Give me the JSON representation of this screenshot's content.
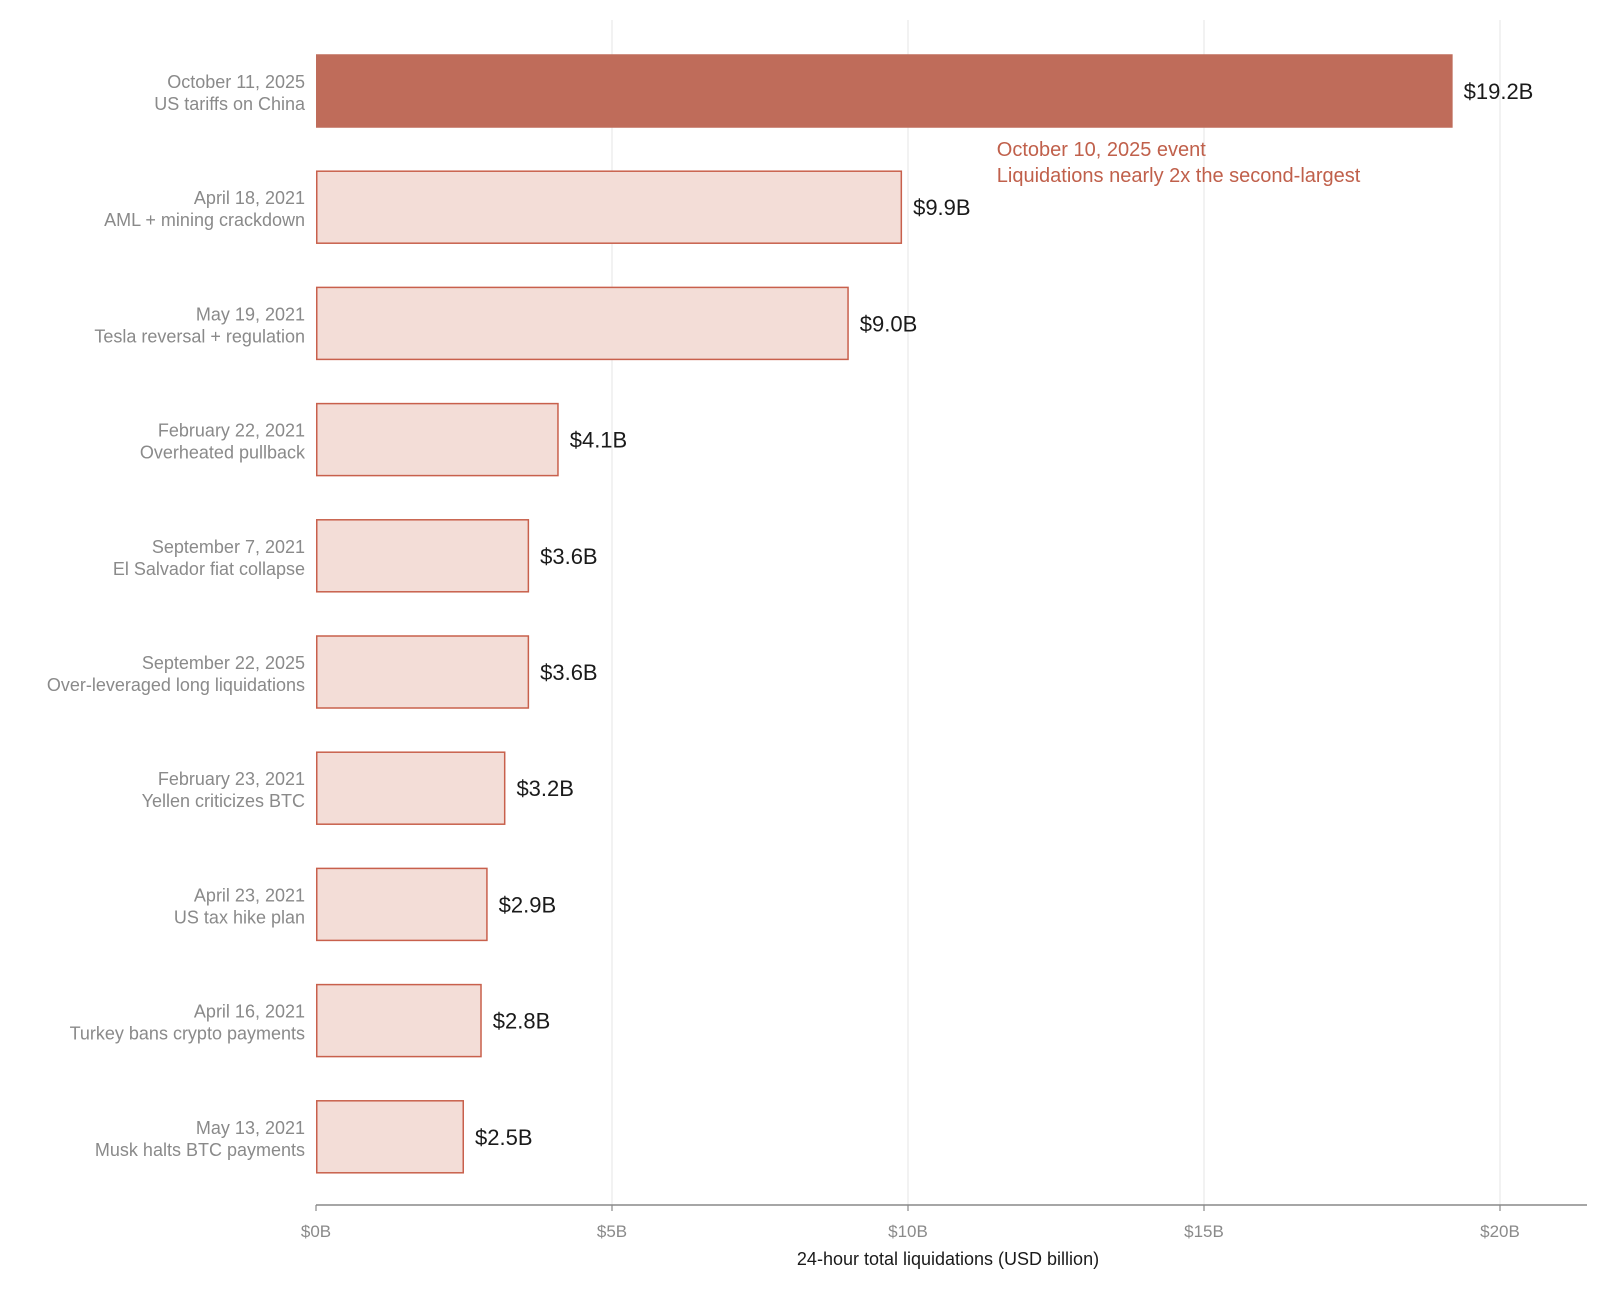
{
  "chart_data": {
    "type": "bar",
    "orientation": "horizontal",
    "categories": [
      {
        "date": "October 11, 2025",
        "event": "US tariffs on China"
      },
      {
        "date": "April 18, 2021",
        "event": "AML + mining crackdown"
      },
      {
        "date": "May 19, 2021",
        "event": "Tesla reversal + regulation"
      },
      {
        "date": "February 22, 2021",
        "event": "Overheated pullback"
      },
      {
        "date": "September 7, 2021",
        "event": "El Salvador fiat collapse"
      },
      {
        "date": "September 22, 2025",
        "event": "Over-leveraged long liquidations"
      },
      {
        "date": "February 23, 2021",
        "event": "Yellen criticizes BTC"
      },
      {
        "date": "April 23, 2021",
        "event": "US tax hike plan"
      },
      {
        "date": "April 16, 2021",
        "event": "Turkey bans crypto payments"
      },
      {
        "date": "May 13, 2021",
        "event": "Musk halts BTC payments"
      }
    ],
    "values": [
      19.2,
      9.9,
      9.0,
      4.1,
      3.6,
      3.6,
      3.2,
      2.9,
      2.8,
      2.5
    ],
    "value_labels": [
      "$19.2B",
      "$9.9B",
      "$9.0B",
      "$4.1B",
      "$3.6B",
      "$3.6B",
      "$3.2B",
      "$2.9B",
      "$2.8B",
      "$2.5B"
    ],
    "highlight_index": 0,
    "xlabel": "24-hour total liquidations (USD billion)",
    "ylabel": "",
    "xlim": [
      0,
      21.5
    ],
    "xticks": [
      0,
      5,
      10,
      15,
      20
    ],
    "xtick_labels": [
      "$0B",
      "$5B",
      "$10B",
      "$15B",
      "$20B"
    ],
    "grid": "vertical",
    "annotation": {
      "lines": [
        "October 10, 2025 event",
        "Liquidations nearly 2x the second-largest"
      ],
      "anchor_value": 11.5,
      "color": "#c0604b"
    },
    "colors": {
      "highlight_fill": "#bf6c5a",
      "highlight_stroke": "#bf6c5a",
      "bar_fill": "#f3ddd7",
      "bar_stroke": "#c8604c",
      "grid": "#e6e6e6",
      "axis": "#888888"
    }
  }
}
